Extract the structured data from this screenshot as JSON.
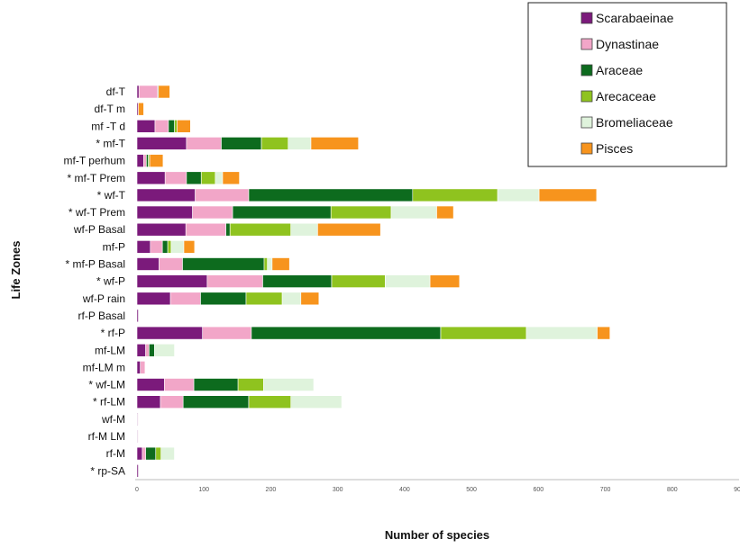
{
  "chart_data": {
    "type": "bar",
    "orientation": "horizontal",
    "stacked": true,
    "title": "",
    "xlabel": "Number of species",
    "ylabel": "Life Zones",
    "xlim": [
      0,
      900
    ],
    "xticks": [
      0,
      100,
      200,
      300,
      400,
      500,
      600,
      700,
      800,
      900
    ],
    "grid": false,
    "legend_position": "top-right",
    "categories": [
      "df-T",
      "df-T m",
      "mf -T d",
      "* mf-T",
      "mf-T perhum",
      "* mf-T Prem",
      "* wf-T",
      "* wf-T Prem",
      "wf-P Basal",
      "mf-P",
      "* mf-P Basal",
      "* wf-P",
      "wf-P rain",
      "rf-P Basal",
      "* rf-P",
      "mf-LM",
      "mf-LM m",
      "* wf-LM",
      "* rf-LM",
      "wf-M",
      "rf-M LM",
      "rf-M",
      "* rp-SA"
    ],
    "series": [
      {
        "name": "Scarabaeinae",
        "color": "#7b1a7b",
        "values": [
          3,
          2,
          27,
          74,
          10,
          42,
          87,
          83,
          73,
          20,
          33,
          105,
          50,
          2,
          98,
          13,
          5,
          41,
          35,
          1,
          1,
          8,
          2
        ]
      },
      {
        "name": "Dynastinae",
        "color": "#f2a6c8",
        "values": [
          28,
          0,
          20,
          52,
          4,
          32,
          80,
          60,
          60,
          18,
          35,
          83,
          45,
          0,
          73,
          5,
          7,
          44,
          34,
          1,
          1,
          5,
          0
        ]
      },
      {
        "name": "Araceae",
        "color": "#0d6b1e",
        "values": [
          1,
          0,
          9,
          60,
          3,
          22,
          245,
          147,
          6,
          8,
          122,
          103,
          68,
          0,
          283,
          8,
          0,
          66,
          98,
          0,
          0,
          15,
          0
        ]
      },
      {
        "name": "Arecaceae",
        "color": "#8fc31f",
        "values": [
          0,
          0,
          4,
          40,
          2,
          21,
          127,
          90,
          91,
          5,
          5,
          80,
          54,
          0,
          128,
          0,
          0,
          38,
          63,
          0,
          0,
          8,
          0
        ]
      },
      {
        "name": "Bromeliaceae",
        "color": "#dff3dc",
        "values": [
          0,
          0,
          0,
          34,
          0,
          11,
          62,
          68,
          40,
          19,
          7,
          67,
          28,
          0,
          106,
          30,
          0,
          75,
          76,
          0,
          0,
          20,
          0
        ]
      },
      {
        "name": "Pisces",
        "color": "#f7941d",
        "values": [
          17,
          8,
          20,
          71,
          20,
          25,
          86,
          25,
          94,
          16,
          26,
          44,
          27,
          0,
          19,
          0,
          0,
          0,
          0,
          0,
          0,
          0,
          0
        ]
      }
    ]
  }
}
